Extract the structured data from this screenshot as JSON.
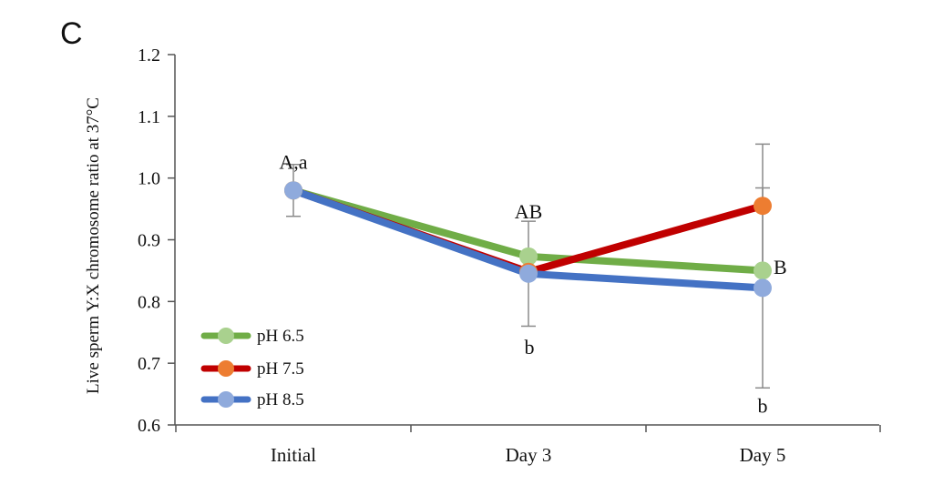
{
  "panel_label": "C",
  "chart_data": {
    "type": "line",
    "title": "",
    "xlabel": "",
    "ylabel": "Live sperm Y:X chromosome ratio at 37°C",
    "categories": [
      "Initial",
      "Day 3",
      "Day 5"
    ],
    "ylim": [
      0.6,
      1.2
    ],
    "yticks": [
      "0.6",
      "0.7",
      "0.8",
      "0.9",
      "1.0",
      "1.1",
      "1.2"
    ],
    "grid": false,
    "legend_position": "bottom-left",
    "series": [
      {
        "name": "pH 6.5",
        "values": [
          0.98,
          0.873,
          0.85
        ],
        "line_color": "#70AD47",
        "marker_color": "#A9D18E",
        "error": [
          null,
          null,
          null
        ]
      },
      {
        "name": "pH 7.5",
        "values": [
          0.98,
          0.848,
          0.955
        ],
        "line_color": "#C00000",
        "marker_color": "#ED7D31",
        "error": [
          null,
          null,
          0.1
        ]
      },
      {
        "name": "pH 8.5",
        "values": [
          0.98,
          0.845,
          0.822
        ],
        "line_color": "#4472C4",
        "marker_color": "#8FAADC",
        "error": [
          0.042,
          0.085,
          0.162
        ]
      }
    ],
    "annotations": [
      {
        "text": "A,a",
        "category": "Initial",
        "y": 1.025
      },
      {
        "text": "AB",
        "category": "Day 3",
        "y": 0.945
      },
      {
        "text": "b",
        "category": "Day 3",
        "y": 0.725
      },
      {
        "text": "B",
        "category": "Day 5",
        "y": 0.855
      },
      {
        "text": "b",
        "category": "Day 5",
        "y": 0.63
      }
    ]
  }
}
